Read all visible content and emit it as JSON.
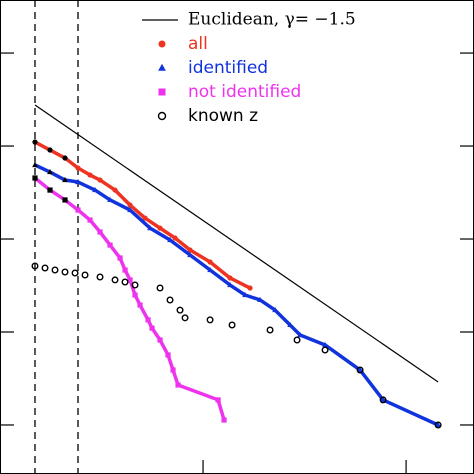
{
  "chart_data": {
    "type": "scatter",
    "log_x": true,
    "log_y": true,
    "xlim": [
      1,
      216
    ],
    "ylim": [
      0.297,
      37200
    ],
    "xticks": [
      1,
      10,
      100
    ],
    "yticks": [
      1,
      10,
      100,
      1000,
      10000
    ],
    "vlines": [
      1.487,
      2.422
    ],
    "reference_line": {
      "name": "Euclidean, γ= −1.5",
      "color": "#000000",
      "x": [
        1.487,
        143.8
      ],
      "values": [
        2761,
        2.9
      ]
    },
    "series": [
      {
        "name": "all",
        "color": "#ee3322",
        "marker": "circle",
        "x": [
          1.487,
          1.763,
          2.09,
          2.422,
          2.776,
          3.109,
          3.686,
          4.37,
          5.18,
          6.14,
          7.28,
          8.63,
          10.83,
          13.58,
          17.04
        ],
        "values": [
          1104,
          906,
          743,
          580,
          488,
          431,
          336,
          232,
          168,
          131,
          102.5,
          76.2,
          56.6,
          38.1,
          29.7
        ]
      },
      {
        "name": "identified",
        "color": "#1133dd",
        "marker": "triangle",
        "x": [
          1.487,
          1.763,
          2.09,
          2.422,
          2.938,
          3.483,
          4.37,
          5.482,
          6.878,
          8.63,
          10.83,
          13.58,
          16.1,
          19.09,
          22.63,
          26.83,
          30.05,
          39.9,
          59.36,
          77.04,
          143.8
        ],
        "values": [
          625,
          525,
          431,
          410,
          336,
          263,
          205,
          131,
          97.5,
          67.3,
          46.4,
          32.0,
          25.0,
          22.1,
          17.2,
          11.9,
          9.28,
          7.25,
          3.9,
          1.86,
          1.0
        ]
      },
      {
        "name": "not identified",
        "color": "#ee33ee",
        "marker": "square",
        "x": [
          1.487,
          1.763,
          2.09,
          2.422,
          2.776,
          3.109,
          3.483,
          3.901,
          4.129,
          4.37,
          4.624,
          4.894,
          5.359,
          5.608,
          6.14,
          6.723,
          7.116,
          7.531,
          11.86,
          12.69
        ],
        "values": [
          453,
          336,
          263,
          205,
          160,
          119,
          86.1,
          62.5,
          46.4,
          36.3,
          25.0,
          19.5,
          13.5,
          11.0,
          8.2,
          5.66,
          3.9,
          2.69,
          1.86,
          1.13
        ]
      },
      {
        "name": "known z",
        "color": "#000000",
        "marker": "open-circle",
        "x": [
          1.487,
          1.666,
          1.866,
          2.09,
          2.342,
          2.623,
          3.109,
          3.686,
          4.129,
          4.624,
          6.14,
          6.878,
          7.703,
          8.153,
          10.83,
          13.9,
          21.38,
          29.04,
          39.9,
          59.36,
          77.04,
          143.8
        ],
        "values": [
          51.3,
          48.8,
          46.4,
          44.2,
          43.1,
          41.0,
          39.0,
          36.3,
          34.5,
          32.0,
          29.7,
          22.1,
          17.2,
          14.2,
          13.5,
          11.9,
          10.5,
          8.2,
          6.4,
          3.9,
          1.86,
          1.0
        ]
      }
    ]
  }
}
